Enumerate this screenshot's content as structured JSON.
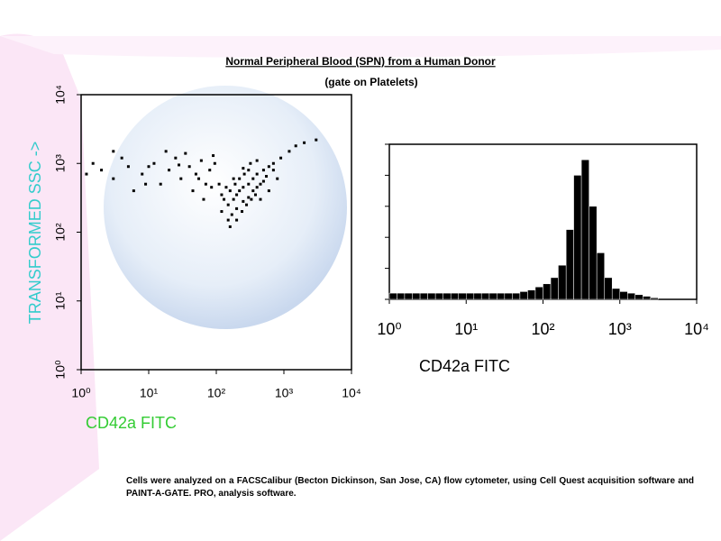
{
  "header": {
    "title": "Normal Peripheral Blood (SPN) from a Human Donor",
    "subtitle": "(gate on Platelets)"
  },
  "footnote": "Cells were analyzed on a FACSCalibur (Becton Dickinson, San Jose, CA) flow cytometer, using Cell Quest acquisition software and PAINT-A-GATE. PRO, analysis software.",
  "chart_data": [
    {
      "type": "scatter",
      "color": "#000000",
      "xlabel": "CD42a FITC",
      "xlabel_color": "#33cc33",
      "ylabel": "TRANSFORMED SSC ->",
      "ylabel_color": "#33cccc",
      "xscale": "log",
      "yscale": "log",
      "xlim": [
        1,
        10000
      ],
      "ylim": [
        1,
        10000
      ],
      "xticks": [
        {
          "value": 1,
          "label": "10⁰"
        },
        {
          "value": 10,
          "label": "10¹"
        },
        {
          "value": 100,
          "label": "10²"
        },
        {
          "value": 1000,
          "label": "10³"
        },
        {
          "value": 10000,
          "label": "10⁴"
        }
      ],
      "yticks": [
        {
          "value": 1,
          "label": "10⁰"
        },
        {
          "value": 10,
          "label": "10¹"
        },
        {
          "value": 100,
          "label": "10²"
        },
        {
          "value": 1000,
          "label": "10³"
        },
        {
          "value": 10000,
          "label": "10⁴"
        }
      ],
      "x": [
        120,
        150,
        180,
        200,
        220,
        250,
        300,
        350,
        400,
        500,
        600,
        700,
        150,
        170,
        200,
        250,
        300,
        350,
        400,
        450,
        500,
        130,
        160,
        190,
        220,
        260,
        300,
        140,
        180,
        250,
        320,
        400,
        160,
        200,
        240,
        280,
        330,
        380,
        120,
        110,
        900,
        1200,
        2000,
        1500,
        3000,
        800,
        600,
        450,
        700,
        550,
        2,
        3,
        5,
        8,
        12,
        15,
        20,
        25,
        30,
        40,
        50,
        60,
        70,
        80,
        90,
        1.5,
        4,
        6,
        10,
        18,
        35,
        45,
        55,
        65,
        85,
        95,
        1.2,
        3,
        9,
        28
      ],
      "y": [
        200,
        250,
        300,
        350,
        400,
        450,
        500,
        600,
        700,
        800,
        900,
        1000,
        150,
        180,
        220,
        280,
        320,
        400,
        450,
        500,
        550,
        300,
        400,
        500,
        600,
        700,
        800,
        450,
        600,
        850,
        1000,
        1100,
        120,
        150,
        200,
        250,
        300,
        350,
        350,
        500,
        1200,
        1500,
        2000,
        1800,
        2200,
        600,
        400,
        300,
        800,
        650,
        800,
        600,
        900,
        700,
        1000,
        500,
        800,
        1200,
        600,
        900,
        700,
        1100,
        500,
        800,
        1300,
        1000,
        1200,
        400,
        900,
        1500,
        1400,
        400,
        600,
        300,
        450,
        1000,
        700,
        1500,
        500,
        950
      ]
    },
    {
      "type": "histogram",
      "color": "#000000",
      "xlabel": "CD42a FITC",
      "xlabel_color": "#000000",
      "xscale": "log",
      "xlim": [
        1,
        10000
      ],
      "ylim": [
        0,
        100
      ],
      "xticks": [
        {
          "value": 1,
          "label": "10⁰"
        },
        {
          "value": 10,
          "label": "10¹"
        },
        {
          "value": 100,
          "label": "10²"
        },
        {
          "value": 1000,
          "label": "10³"
        },
        {
          "value": 10000,
          "label": "10⁴"
        }
      ],
      "yticks": [
        0,
        20,
        40,
        60,
        80,
        100
      ],
      "bins": [
        1,
        1.26,
        1.58,
        2,
        2.51,
        3.16,
        3.98,
        5.01,
        6.31,
        7.94,
        10,
        12.6,
        15.8,
        20,
        25.1,
        31.6,
        39.8,
        50.1,
        63.1,
        79.4,
        100,
        126,
        158,
        200,
        251,
        316,
        398,
        501,
        631,
        794,
        1000,
        1260,
        1580,
        2000,
        2510,
        3160
      ],
      "values": [
        4,
        4,
        4,
        4,
        4,
        4,
        4,
        4,
        4,
        4,
        4,
        4,
        4,
        4,
        4,
        4,
        4,
        5,
        6,
        8,
        10,
        14,
        22,
        45,
        80,
        90,
        60,
        30,
        14,
        7,
        5,
        4,
        3,
        2,
        1
      ]
    }
  ]
}
